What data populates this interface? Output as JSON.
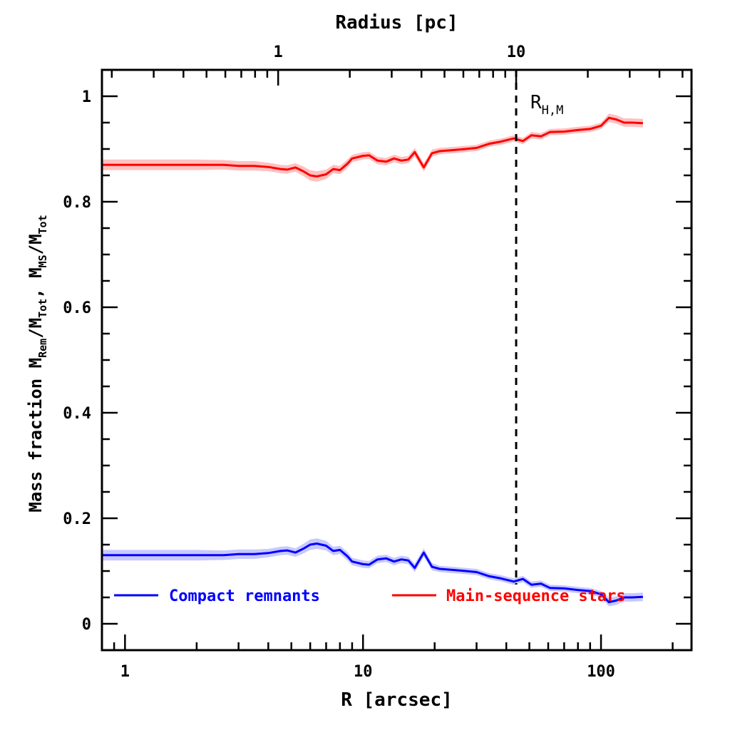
{
  "chart_data": {
    "type": "line",
    "xscale": "log",
    "xlabel": "R [arcsec]",
    "xlim": [
      0.8,
      240
    ],
    "x_ticks": [
      {
        "value": 1,
        "label": "1"
      },
      {
        "value": 10,
        "label": "10"
      },
      {
        "value": 100,
        "label": "100"
      }
    ],
    "top_axis": {
      "label": "Radius [pc]",
      "unit_ratio_arcsec_per_pc": 4.4,
      "ticks": [
        {
          "value": 1,
          "label": "1"
        },
        {
          "value": 10,
          "label": "10"
        }
      ]
    },
    "ylabel_parts": {
      "prefix": "Mass fraction  M",
      "rem": "Rem",
      "slash1": "/M",
      "tot1": "Tot",
      "comma": ",  M",
      "ms": "MS",
      "slash2": "/M",
      "tot2": "Tot"
    },
    "ylim": [
      -0.05,
      1.05
    ],
    "y_ticks": [
      {
        "value": 0,
        "label": "0"
      },
      {
        "value": 0.2,
        "label": "0.2"
      },
      {
        "value": 0.4,
        "label": "0.4"
      },
      {
        "value": 0.6,
        "label": "0.6"
      },
      {
        "value": 0.8,
        "label": "0.8"
      },
      {
        "value": 1,
        "label": "1"
      }
    ],
    "reference_line": {
      "x": 44,
      "style": "dashed",
      "label_main": "R",
      "label_sub": "H,M"
    },
    "series": [
      {
        "name": "Compact remnants",
        "color": "#0000ff",
        "band_color": "#c8c8ff",
        "points": [
          [
            0.8,
            0.13
          ],
          [
            1.0,
            0.13
          ],
          [
            1.5,
            0.13
          ],
          [
            2.0,
            0.13
          ],
          [
            2.6,
            0.13
          ],
          [
            3.0,
            0.132
          ],
          [
            3.5,
            0.132
          ],
          [
            4.0,
            0.134
          ],
          [
            4.5,
            0.138
          ],
          [
            4.8,
            0.139
          ],
          [
            5.2,
            0.135
          ],
          [
            5.6,
            0.142
          ],
          [
            6.0,
            0.15
          ],
          [
            6.4,
            0.152
          ],
          [
            7.0,
            0.148
          ],
          [
            7.5,
            0.138
          ],
          [
            8.0,
            0.14
          ],
          [
            8.6,
            0.128
          ],
          [
            9.0,
            0.118
          ],
          [
            10.0,
            0.113
          ],
          [
            10.6,
            0.112
          ],
          [
            11.5,
            0.122
          ],
          [
            12.5,
            0.124
          ],
          [
            13.5,
            0.118
          ],
          [
            14.5,
            0.122
          ],
          [
            15.5,
            0.12
          ],
          [
            16.5,
            0.106
          ],
          [
            18.0,
            0.135
          ],
          [
            19.5,
            0.108
          ],
          [
            21.0,
            0.104
          ],
          [
            24.0,
            0.102
          ],
          [
            27.0,
            0.1
          ],
          [
            30.0,
            0.098
          ],
          [
            34.0,
            0.09
          ],
          [
            38.0,
            0.086
          ],
          [
            43.0,
            0.08
          ],
          [
            47.0,
            0.085
          ],
          [
            51.0,
            0.074
          ],
          [
            56.0,
            0.076
          ],
          [
            61.0,
            0.068
          ],
          [
            70.0,
            0.067
          ],
          [
            80.0,
            0.064
          ],
          [
            90.0,
            0.062
          ],
          [
            100.0,
            0.056
          ],
          [
            108.0,
            0.041
          ],
          [
            116.0,
            0.044
          ],
          [
            125.0,
            0.05
          ],
          [
            135.0,
            0.05
          ],
          [
            150.0,
            0.051
          ]
        ],
        "band": [
          0.01,
          0.01,
          0.01,
          0.01,
          0.009,
          0.009,
          0.009,
          0.008,
          0.008,
          0.008,
          0.008,
          0.009,
          0.01,
          0.01,
          0.009,
          0.008,
          0.008,
          0.008,
          0.007,
          0.007,
          0.007,
          0.007,
          0.007,
          0.007,
          0.007,
          0.007,
          0.008,
          0.008,
          0.007,
          0.006,
          0.006,
          0.006,
          0.006,
          0.006,
          0.006,
          0.006,
          0.006,
          0.006,
          0.006,
          0.006,
          0.006,
          0.006,
          0.006,
          0.006,
          0.008,
          0.008,
          0.008,
          0.008,
          0.008
        ]
      },
      {
        "name": "Main-sequence stars",
        "color": "#ff0000",
        "band_color": "#ffc0c0",
        "points": [
          [
            0.8,
            0.87
          ],
          [
            1.0,
            0.87
          ],
          [
            1.5,
            0.87
          ],
          [
            2.0,
            0.87
          ],
          [
            2.6,
            0.87
          ],
          [
            3.0,
            0.868
          ],
          [
            3.5,
            0.868
          ],
          [
            4.0,
            0.866
          ],
          [
            4.5,
            0.862
          ],
          [
            4.8,
            0.861
          ],
          [
            5.2,
            0.865
          ],
          [
            5.6,
            0.858
          ],
          [
            6.0,
            0.85
          ],
          [
            6.4,
            0.848
          ],
          [
            7.0,
            0.852
          ],
          [
            7.5,
            0.862
          ],
          [
            8.0,
            0.86
          ],
          [
            8.6,
            0.872
          ],
          [
            9.0,
            0.882
          ],
          [
            10.0,
            0.887
          ],
          [
            10.6,
            0.888
          ],
          [
            11.5,
            0.878
          ],
          [
            12.5,
            0.876
          ],
          [
            13.5,
            0.882
          ],
          [
            14.5,
            0.878
          ],
          [
            15.5,
            0.88
          ],
          [
            16.5,
            0.894
          ],
          [
            18.0,
            0.865
          ],
          [
            19.5,
            0.892
          ],
          [
            21.0,
            0.896
          ],
          [
            24.0,
            0.898
          ],
          [
            27.0,
            0.9
          ],
          [
            30.0,
            0.902
          ],
          [
            34.0,
            0.91
          ],
          [
            38.0,
            0.914
          ],
          [
            43.0,
            0.92
          ],
          [
            47.0,
            0.915
          ],
          [
            51.0,
            0.926
          ],
          [
            56.0,
            0.924
          ],
          [
            61.0,
            0.932
          ],
          [
            70.0,
            0.933
          ],
          [
            80.0,
            0.936
          ],
          [
            90.0,
            0.938
          ],
          [
            100.0,
            0.944
          ],
          [
            108.0,
            0.959
          ],
          [
            116.0,
            0.956
          ],
          [
            125.0,
            0.95
          ],
          [
            135.0,
            0.95
          ],
          [
            150.0,
            0.949
          ]
        ],
        "band": [
          0.01,
          0.01,
          0.01,
          0.01,
          0.009,
          0.009,
          0.009,
          0.008,
          0.008,
          0.008,
          0.008,
          0.009,
          0.01,
          0.01,
          0.009,
          0.008,
          0.008,
          0.008,
          0.007,
          0.007,
          0.007,
          0.007,
          0.007,
          0.007,
          0.007,
          0.007,
          0.008,
          0.008,
          0.007,
          0.006,
          0.006,
          0.006,
          0.006,
          0.006,
          0.006,
          0.006,
          0.006,
          0.006,
          0.006,
          0.006,
          0.006,
          0.006,
          0.006,
          0.006,
          0.008,
          0.008,
          0.008,
          0.008,
          0.008
        ]
      }
    ],
    "legend": {
      "position": "bottom"
    }
  }
}
